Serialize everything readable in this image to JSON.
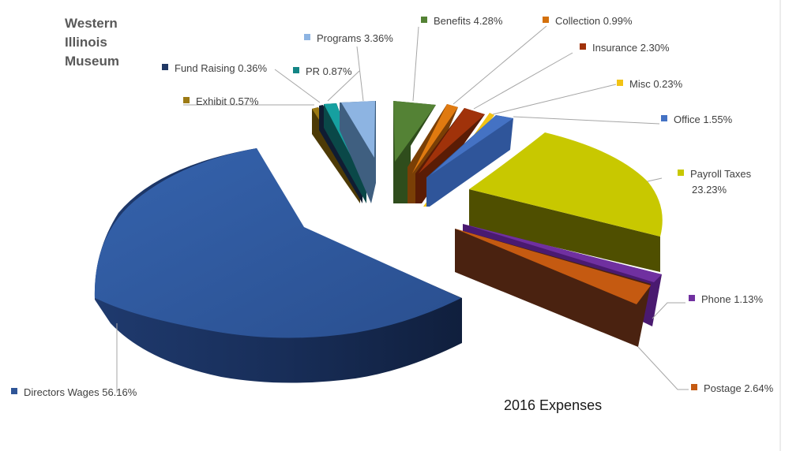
{
  "title_lines": [
    "Western",
    "Illinois",
    "Museum"
  ],
  "caption": "2016 Expenses",
  "chart_data": {
    "type": "pie",
    "style": "3d-exploded",
    "title": "Western Illinois Museum",
    "subtitle": "2016 Expenses",
    "unit": "%",
    "series": [
      {
        "name": "Directors Wages",
        "value": 56.16,
        "label": "Directors Wages 56.16%",
        "color": "#2f5597"
      },
      {
        "name": "Exhibit",
        "value": 0.57,
        "label": "Exhibit 0.57%",
        "color": "#9c7a14"
      },
      {
        "name": "Fund Raising",
        "value": 0.36,
        "label": "Fund Raising 0.36%",
        "color": "#203864"
      },
      {
        "name": "PR",
        "value": 0.87,
        "label": "PR 0.87%",
        "color": "#138585"
      },
      {
        "name": "Programs",
        "value": 3.36,
        "label": "Programs 3.36%",
        "color": "#8db4e2"
      },
      {
        "name": "Benefits",
        "value": 4.28,
        "label": "Benefits 4.28%",
        "color": "#548235"
      },
      {
        "name": "Collection",
        "value": 0.99,
        "label": "Collection 0.99%",
        "color": "#d4700c"
      },
      {
        "name": "Insurance",
        "value": 2.3,
        "label": "Insurance 2.30%",
        "color": "#a0320a"
      },
      {
        "name": "Misc",
        "value": 0.23,
        "label": "Misc 0.23%",
        "color": "#f2c314"
      },
      {
        "name": "Office",
        "value": 1.55,
        "label": "Office 1.55%",
        "color": "#4472c4"
      },
      {
        "name": "Payroll Taxes",
        "value": 23.23,
        "label": "Payroll Taxes 23.23%",
        "color": "#c8c800"
      },
      {
        "name": "Phone",
        "value": 1.13,
        "label": "Phone 1.13%",
        "color": "#7030a0"
      },
      {
        "name": "Postage",
        "value": 2.64,
        "label": "Postage 2.64%",
        "color": "#c55a11"
      }
    ]
  }
}
